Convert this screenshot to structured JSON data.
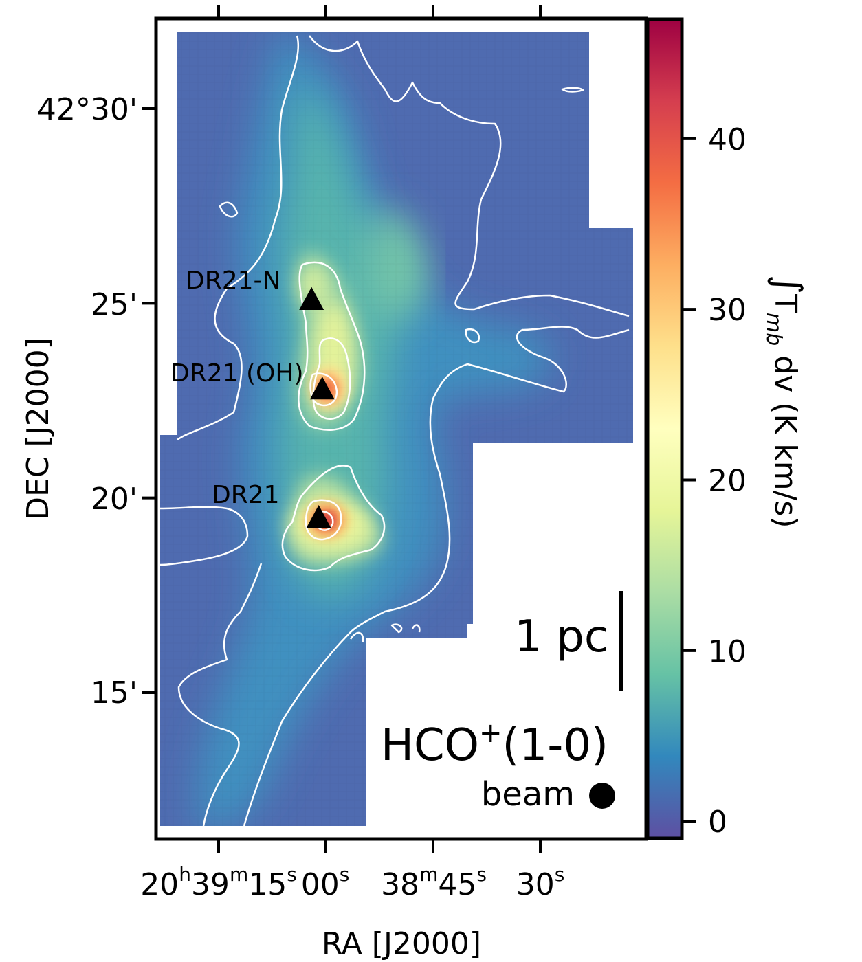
{
  "chart_data": {
    "type": "heatmap",
    "title": "HCO⁺(1-0)",
    "line_label": "HCO",
    "line_label_sup": "+",
    "line_label_suffix": "(1-0)",
    "xlabel": "RA [J2000]",
    "ylabel": "DEC [J2000]",
    "x_ticks": [
      {
        "h": "20",
        "m": "39",
        "s": "15"
      },
      {
        "s": "00"
      },
      {
        "m": "38",
        "s": "45"
      },
      {
        "s": "30"
      }
    ],
    "x_tick_values_sec": [
      75,
      60,
      45,
      30
    ],
    "y_ticks": [
      {
        "label": "42°30'",
        "arcmin": 30
      },
      {
        "label": "25'",
        "arcmin": 25
      },
      {
        "label": "20'",
        "arcmin": 20
      },
      {
        "label": "15'",
        "arcmin": 15
      }
    ],
    "colorbar": {
      "label_int": "∫",
      "label_T": "T",
      "label_sub": "mb",
      "label_rest": " dv (K km/s)",
      "ticks": [
        0,
        10,
        20,
        30,
        40
      ],
      "range": [
        -1,
        47
      ],
      "colormap": [
        "#5e4fa2",
        "#3288bd",
        "#66c2a5",
        "#abdda4",
        "#e6f598",
        "#ffffbf",
        "#fee08b",
        "#fdae61",
        "#f46d43",
        "#d53e4f",
        "#9e0142"
      ]
    },
    "sources": [
      {
        "name": "DR21-N",
        "marker": "triangle",
        "ra_sec": 62.0,
        "dec_arcmin": 25.1
      },
      {
        "name": "DR21 (OH)",
        "marker": "triangle",
        "ra_sec": 60.5,
        "dec_arcmin": 22.8
      },
      {
        "name": "DR21",
        "marker": "triangle",
        "ra_sec": 61.0,
        "dec_arcmin": 19.5
      }
    ],
    "scale_bar": "1 pc",
    "beam_label": "beam",
    "grid": false
  }
}
